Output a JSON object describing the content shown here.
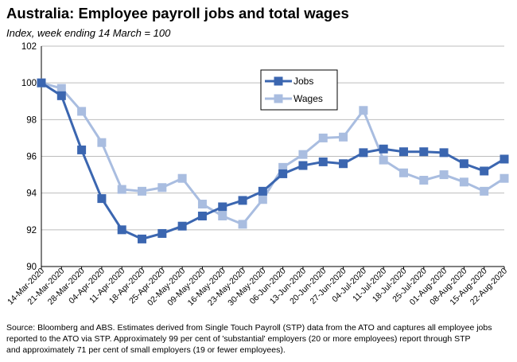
{
  "title": "Australia:  Employee payroll jobs and total wages",
  "subtitle": "Index, week ending 14 March = 100",
  "source_lines": [
    "Source: Bloomberg and ABS.  Estimates derived from Single Touch Payroll (STP) data from the ATO and captures all employee jobs",
    "reported to the ATO via STP.  Approximately 99 per cent of 'substantial' employers (20 or more employees) report through STP",
    "and approximately 71 per cent of small employers (19 or fewer employees)."
  ],
  "chart_data": {
    "type": "line",
    "categories": [
      "14-Mar-2020",
      "21-Mar-2020",
      "28-Mar-2020",
      "04-Apr-2020",
      "11-Apr-2020",
      "18-Apr-2020",
      "25-Apr-2020",
      "02-May-2020",
      "09-May-2020",
      "16-May-2020",
      "23-May-2020",
      "30-May-2020",
      "06-Jun-2020",
      "13-Jun-2020",
      "20-Jun-2020",
      "27-Jun-2020",
      "04-Jul-2020",
      "11-Jul-2020",
      "18-Jul-2020",
      "25-Jul-2020",
      "01-Aug-2020",
      "08-Aug-2020",
      "15-Aug-2020",
      "22-Aug-2020"
    ],
    "series": [
      {
        "name": "Jobs",
        "color": "#3b66b0",
        "values": [
          100.0,
          99.3,
          96.35,
          93.7,
          92.0,
          91.5,
          91.8,
          92.2,
          92.75,
          93.25,
          93.6,
          94.1,
          95.05,
          95.5,
          95.7,
          95.6,
          96.2,
          96.4,
          96.25,
          96.25,
          96.2,
          95.6,
          95.2,
          95.85
        ]
      },
      {
        "name": "Wages",
        "color": "#a9bde0",
        "values": [
          100.0,
          99.7,
          98.45,
          96.75,
          94.2,
          94.1,
          94.3,
          94.8,
          93.4,
          92.75,
          92.3,
          93.65,
          95.4,
          96.1,
          97.0,
          97.05,
          98.5,
          95.8,
          95.1,
          94.7,
          95.0,
          94.6,
          94.1,
          94.8
        ]
      }
    ],
    "y_ticks": [
      "90",
      "92",
      "94",
      "96",
      "98",
      "100",
      "102"
    ],
    "ylim": [
      90,
      102
    ],
    "grid": "horizontal",
    "legend_position": "top-center"
  }
}
